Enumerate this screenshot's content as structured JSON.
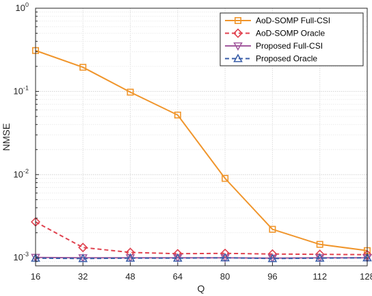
{
  "chart_data": {
    "type": "line",
    "xlabel": "Q",
    "ylabel": "NMSE",
    "x": [
      16,
      32,
      48,
      64,
      80,
      96,
      112,
      128
    ],
    "xlim": [
      16,
      128
    ],
    "yscale": "log",
    "ylim": [
      0.0008,
      1
    ],
    "xticks": [
      "16",
      "32",
      "48",
      "64",
      "80",
      "96",
      "112",
      "128"
    ],
    "yticks": [
      {
        "base": "10",
        "exp": "-3",
        "value": 0.001
      },
      {
        "base": "10",
        "exp": "-2",
        "value": 0.01
      },
      {
        "base": "10",
        "exp": "-1",
        "value": 0.1
      },
      {
        "base": "10",
        "exp": "0",
        "value": 1
      }
    ],
    "grid": true,
    "legend_position": "top-right",
    "series": [
      {
        "name": "AoD-SOMP Full-CSI",
        "color": "#f0952b",
        "line": "solid",
        "marker": "square",
        "values": [
          0.31,
          0.195,
          0.098,
          0.052,
          0.009,
          0.0022,
          0.00145,
          0.00122
        ]
      },
      {
        "name": "AoD-SOMP Oracle",
        "color": "#e0424f",
        "line": "dashed",
        "marker": "diamond",
        "values": [
          0.0027,
          0.00133,
          0.00116,
          0.00112,
          0.00113,
          0.00111,
          0.0011,
          0.00109
        ]
      },
      {
        "name": "Proposed Full-CSI",
        "color": "#a35a9e",
        "line": "solid",
        "marker": "triangle-down",
        "values": [
          0.00101,
          0.001,
          0.001,
          0.001,
          0.001,
          0.00099,
          0.001,
          0.001
        ]
      },
      {
        "name": "Proposed Oracle",
        "color": "#3a5ea8",
        "line": "dashed",
        "marker": "triangle-up",
        "values": [
          0.00099,
          0.00098,
          0.00099,
          0.00099,
          0.001,
          0.00098,
          0.00099,
          0.001
        ]
      }
    ]
  }
}
